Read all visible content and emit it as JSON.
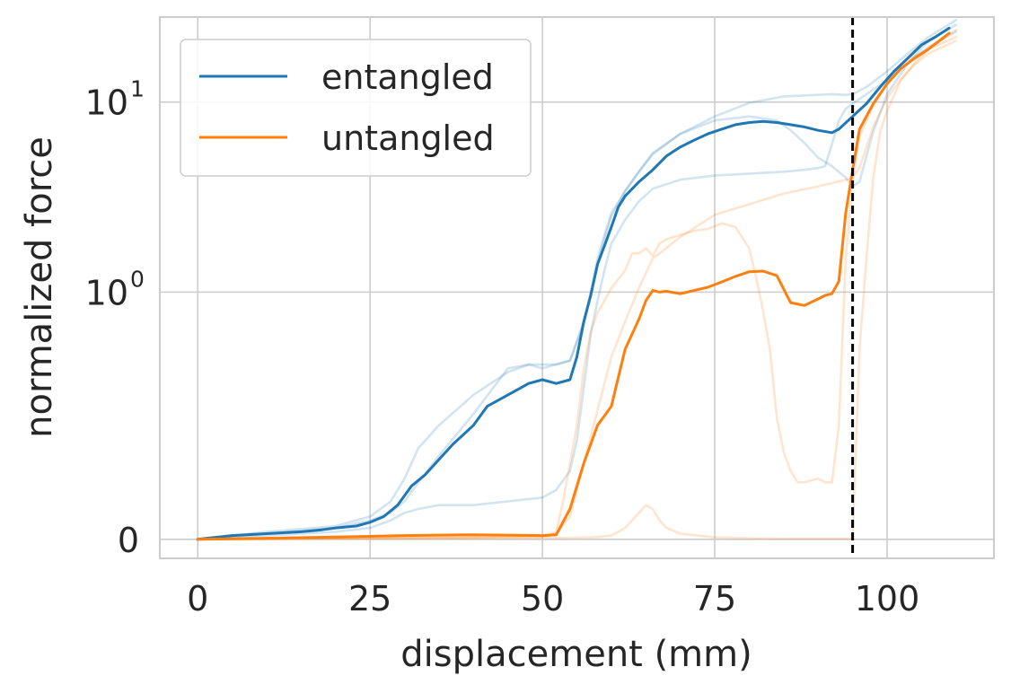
{
  "chart_data": {
    "type": "line",
    "xlabel": "displacement (mm)",
    "ylabel": "normalized force",
    "xlim": [
      -5.5,
      115.5
    ],
    "ylim_note": "symlog scale, linthresh 0.5",
    "ylim": [
      -0.05,
      28
    ],
    "yscale": "symlog",
    "linthresh": 0.5,
    "grid": true,
    "legend_position": "top-left",
    "x_ticks": [
      {
        "value": 0,
        "label": "0"
      },
      {
        "value": 25,
        "label": "25"
      },
      {
        "value": 50,
        "label": "50"
      },
      {
        "value": 75,
        "label": "75"
      },
      {
        "value": 100,
        "label": "100"
      }
    ],
    "y_ticks": [
      {
        "value": 0,
        "label": "0",
        "exp": ""
      },
      {
        "value": 1,
        "label": "10",
        "exp": "0"
      },
      {
        "value": 10,
        "label": "10",
        "exp": "1"
      }
    ],
    "vline": {
      "x": 95,
      "color": "#000000",
      "style": "dashed"
    },
    "series": [
      {
        "name": "entangled",
        "color": "#1f77b4",
        "role": "mean",
        "x": [
          0,
          5,
          10,
          15,
          18,
          20,
          23,
          25,
          27,
          29,
          31,
          33,
          35,
          37,
          40,
          42,
          45,
          48,
          50,
          52,
          54,
          55,
          56,
          57,
          58,
          59,
          60,
          61,
          62,
          64,
          66,
          68,
          70,
          72,
          74,
          76,
          78,
          80,
          82,
          84,
          86,
          88,
          90,
          92,
          93,
          95,
          97,
          99,
          101,
          103,
          105,
          107,
          109
        ],
        "y": [
          0,
          0.01,
          0.015,
          0.02,
          0.025,
          0.03,
          0.035,
          0.045,
          0.06,
          0.09,
          0.14,
          0.17,
          0.21,
          0.25,
          0.3,
          0.35,
          0.38,
          0.41,
          0.42,
          0.41,
          0.42,
          0.48,
          0.7,
          0.96,
          1.4,
          1.75,
          2.2,
          2.8,
          3.2,
          3.8,
          4.4,
          5.2,
          5.8,
          6.3,
          6.8,
          7.2,
          7.6,
          7.8,
          7.9,
          7.8,
          7.6,
          7.4,
          7.1,
          6.9,
          7.2,
          8.4,
          9.8,
          12.0,
          14.5,
          17.0,
          20.0,
          22.0,
          24.5
        ]
      },
      {
        "name": "untangled",
        "color": "#ff7f0e",
        "role": "mean",
        "x": [
          0,
          10,
          20,
          30,
          40,
          50,
          52,
          54,
          56,
          58,
          60,
          62,
          64,
          65,
          66,
          67,
          68,
          70,
          72,
          74,
          76,
          78,
          80,
          82,
          84,
          86,
          88,
          90,
          91,
          92,
          93,
          94,
          95,
          96,
          98,
          100,
          102,
          104,
          106,
          109
        ],
        "y": [
          0,
          0.003,
          0.006,
          0.01,
          0.012,
          0.01,
          0.012,
          0.08,
          0.2,
          0.3,
          0.35,
          0.5,
          0.72,
          0.9,
          1.02,
          1.0,
          1.01,
          0.98,
          1.02,
          1.06,
          1.13,
          1.21,
          1.28,
          1.29,
          1.22,
          0.88,
          0.85,
          0.92,
          0.96,
          0.98,
          1.14,
          2.6,
          4.4,
          7.2,
          9.8,
          12.5,
          15.0,
          17.0,
          19.0,
          23.0
        ]
      },
      {
        "name": "",
        "color": "#1f77b4",
        "role": "trial",
        "x": [
          0,
          10,
          20,
          25,
          28,
          30,
          32,
          35,
          40,
          45,
          48,
          50,
          54,
          56,
          57,
          58,
          59,
          60,
          62,
          64,
          66,
          70,
          75,
          80,
          85,
          90,
          92,
          94,
          95,
          97,
          100,
          103,
          106,
          110
        ],
        "y": [
          0,
          0.02,
          0.035,
          0.06,
          0.1,
          0.16,
          0.24,
          0.3,
          0.38,
          0.44,
          0.46,
          0.45,
          0.47,
          0.7,
          1.0,
          1.5,
          2.0,
          2.6,
          3.4,
          4.3,
          5.4,
          6.8,
          8.4,
          9.9,
          10.7,
          10.9,
          11.0,
          10.9,
          11.0,
          12.0,
          14.5,
          18.0,
          22.0,
          27.0
        ]
      },
      {
        "name": "",
        "color": "#1f77b4",
        "role": "trial",
        "x": [
          0,
          10,
          20,
          25,
          28,
          30,
          32,
          35,
          40,
          45,
          48,
          50,
          52,
          54,
          56,
          57,
          58,
          59,
          60,
          62,
          64,
          66,
          70,
          75,
          80,
          84,
          86,
          88,
          90,
          92,
          94,
          95,
          96,
          97,
          98,
          100,
          103,
          106,
          110
        ],
        "y": [
          0,
          0.015,
          0.03,
          0.05,
          0.07,
          0.1,
          0.15,
          0.22,
          0.33,
          0.45,
          0.46,
          0.46,
          0.46,
          0.47,
          0.68,
          0.96,
          1.4,
          1.9,
          2.5,
          3.4,
          4.3,
          5.3,
          6.8,
          8.0,
          8.4,
          8.0,
          7.1,
          6.1,
          5.1,
          4.6,
          4.0,
          3.6,
          3.8,
          5.2,
          7.0,
          11.0,
          16.0,
          21.0,
          25.5
        ]
      },
      {
        "name": "",
        "color": "#1f77b4",
        "role": "trial",
        "x": [
          0,
          10,
          20,
          25,
          28,
          30,
          32,
          35,
          40,
          45,
          50,
          52,
          54,
          55,
          56,
          57,
          58,
          59,
          60,
          62,
          64,
          66,
          70,
          75,
          80,
          85,
          88,
          90,
          91,
          92,
          93,
          94,
          95,
          97,
          100,
          103,
          106,
          110
        ],
        "y": [
          0,
          0.01,
          0.02,
          0.03,
          0.05,
          0.07,
          0.08,
          0.09,
          0.09,
          0.1,
          0.11,
          0.13,
          0.18,
          0.26,
          0.4,
          0.6,
          0.9,
          1.3,
          1.8,
          2.4,
          3.0,
          3.5,
          3.9,
          4.1,
          4.2,
          4.3,
          4.4,
          4.5,
          4.6,
          6.0,
          8.0,
          9.2,
          9.8,
          11.0,
          13.0,
          16.0,
          19.5,
          23.5
        ]
      },
      {
        "name": "",
        "color": "#ff7f0e",
        "role": "trial",
        "x": [
          0,
          20,
          40,
          50,
          52,
          53,
          55,
          56,
          57,
          58,
          59,
          60,
          62,
          63,
          64,
          65,
          66,
          67,
          68,
          70,
          72,
          74,
          76,
          78,
          80,
          81,
          82,
          83,
          84,
          85,
          86,
          87,
          88,
          90,
          91,
          92,
          93,
          94,
          95,
          96,
          98,
          100,
          102,
          104,
          106,
          110
        ],
        "y": [
          0,
          0.002,
          0.004,
          0.006,
          0.02,
          0.1,
          0.3,
          0.45,
          0.62,
          0.78,
          0.9,
          1.05,
          1.3,
          1.6,
          1.6,
          1.7,
          1.55,
          1.8,
          1.9,
          2.0,
          2.1,
          2.15,
          2.3,
          2.2,
          1.7,
          1.2,
          0.8,
          0.5,
          0.32,
          0.23,
          0.18,
          0.15,
          0.15,
          0.16,
          0.15,
          0.15,
          0.3,
          1.5,
          3.8,
          6.6,
          9.6,
          12.4,
          15.0,
          17.4,
          19.0,
          22.0
        ]
      },
      {
        "name": "",
        "color": "#ff7f0e",
        "role": "trial",
        "x": [
          0,
          20,
          40,
          50,
          52,
          54,
          56,
          58,
          60,
          62,
          64,
          66,
          70,
          75,
          80,
          85,
          90,
          92,
          94,
          95,
          96,
          97,
          98,
          100,
          102,
          104,
          106,
          110
        ],
        "y": [
          0,
          0.003,
          0.006,
          0.01,
          0.015,
          0.06,
          0.2,
          0.34,
          0.48,
          0.7,
          1.05,
          1.5,
          1.95,
          2.55,
          2.9,
          3.3,
          3.6,
          3.75,
          3.9,
          4.0,
          4.5,
          5.8,
          7.4,
          10.5,
          13.2,
          15.8,
          18.0,
          21.0
        ]
      },
      {
        "name": "",
        "color": "#ff7f0e",
        "role": "trial",
        "x": [
          0,
          20,
          40,
          55,
          58,
          60,
          62,
          64,
          65,
          66,
          67,
          68,
          70,
          75,
          80,
          85,
          90,
          93,
          94,
          95,
          96,
          97,
          98,
          99,
          100,
          102,
          104,
          106,
          110
        ],
        "y": [
          0,
          0.002,
          0.003,
          0.004,
          0.006,
          0.01,
          0.03,
          0.07,
          0.09,
          0.08,
          0.05,
          0.03,
          0.015,
          0.005,
          0.003,
          0.002,
          0.002,
          0.002,
          0.002,
          0.002,
          0.5,
          1.5,
          4.0,
          7.0,
          9.0,
          13.0,
          16.0,
          19.0,
          24.0
        ]
      }
    ]
  },
  "legend": {
    "entries": [
      {
        "label": "entangled",
        "color": "#1f77b4"
      },
      {
        "label": "untangled",
        "color": "#ff7f0e"
      }
    ]
  },
  "style": {
    "grid_color": "#cccccc",
    "spine_color": "#cccccc",
    "text_color": "#262626"
  }
}
